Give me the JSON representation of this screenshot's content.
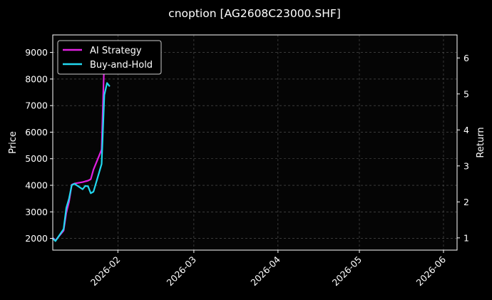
{
  "chart_data": {
    "type": "line",
    "title": "cnoption [AG2608C23000.SHF]",
    "ylabel": "Price",
    "y2label": "Return",
    "xlim": [
      "2026-01-08",
      "2026-06-06"
    ],
    "ylim": [
      1560,
      9660
    ],
    "y2lim": [
      0.66,
      6.64
    ],
    "yticks": [
      2000,
      3000,
      4000,
      5000,
      6000,
      7000,
      8000,
      9000
    ],
    "y2ticks": [
      1,
      2,
      3,
      4,
      5,
      6
    ],
    "xticks": [
      "2026-02",
      "2026-03",
      "2026-04",
      "2026-05",
      "2026-06"
    ],
    "xtick_dates": [
      "2026-02-01",
      "2026-03-01",
      "2026-04-01",
      "2026-05-01",
      "2026-06-01"
    ],
    "grid": true,
    "legend_position": "top-left",
    "series": [
      {
        "name": "AI Strategy",
        "color": "#e020e0",
        "axis": "right",
        "x": [
          "2026-01-08",
          "2026-01-09",
          "2026-01-12",
          "2026-01-13",
          "2026-01-14",
          "2026-01-15",
          "2026-01-16",
          "2026-01-19",
          "2026-01-20",
          "2026-01-21",
          "2026-01-22",
          "2026-01-23",
          "2026-01-26",
          "2026-01-27"
        ],
        "values": [
          1.0,
          0.93,
          1.2,
          1.7,
          2.0,
          2.48,
          2.51,
          2.55,
          2.57,
          2.59,
          2.63,
          2.9,
          3.45,
          6.0
        ]
      },
      {
        "name": "Buy-and-Hold",
        "color": "#22d8f0",
        "axis": "left",
        "x": [
          "2026-01-08",
          "2026-01-09",
          "2026-01-12",
          "2026-01-13",
          "2026-01-14",
          "2026-01-15",
          "2026-01-16",
          "2026-01-19",
          "2026-01-20",
          "2026-01-21",
          "2026-01-22",
          "2026-01-23",
          "2026-01-26",
          "2026-01-27",
          "2026-01-28",
          "2026-01-29"
        ],
        "values": [
          2000,
          1900,
          2350,
          3150,
          3500,
          4000,
          4060,
          3850,
          3980,
          3960,
          3700,
          3760,
          4800,
          7400,
          7850,
          7720
        ]
      }
    ]
  }
}
